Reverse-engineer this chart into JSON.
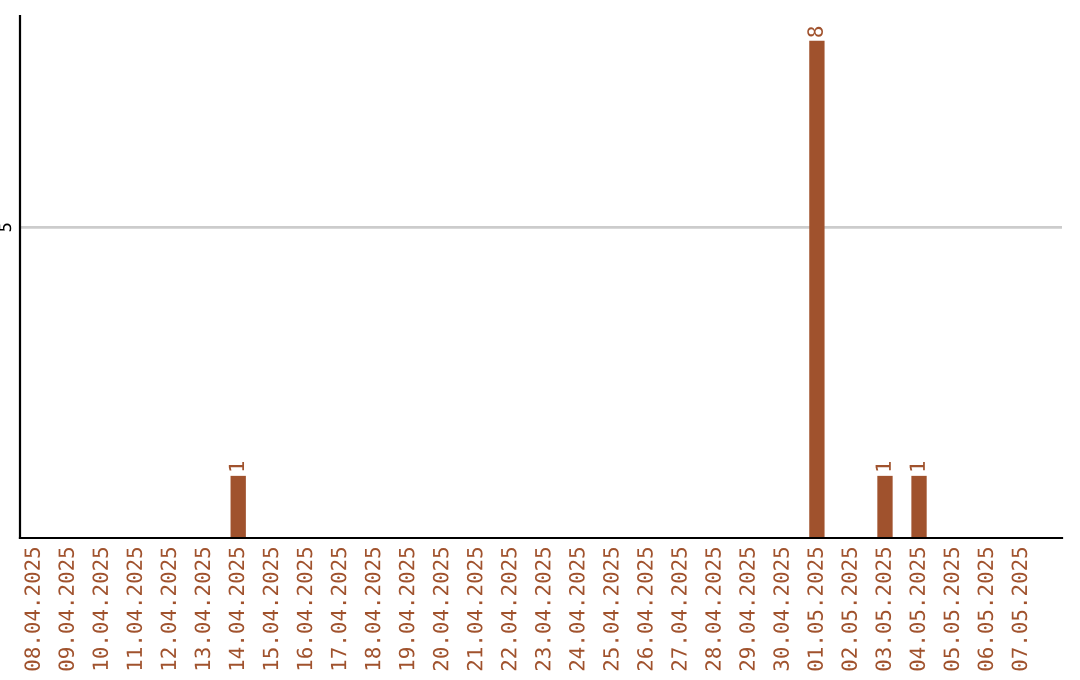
{
  "chart_data": {
    "type": "bar",
    "categories": [
      "08.04.2025",
      "09.04.2025",
      "10.04.2025",
      "11.04.2025",
      "12.04.2025",
      "13.04.2025",
      "14.04.2025",
      "15.04.2025",
      "16.04.2025",
      "17.04.2025",
      "18.04.2025",
      "19.04.2025",
      "20.04.2025",
      "21.04.2025",
      "22.04.2025",
      "23.04.2025",
      "24.04.2025",
      "25.04.2025",
      "26.04.2025",
      "27.04.2025",
      "28.04.2025",
      "29.04.2025",
      "30.04.2025",
      "01.05.2025",
      "02.05.2025",
      "03.05.2025",
      "04.05.2025",
      "05.05.2025",
      "06.05.2025",
      "07.05.2025"
    ],
    "values": [
      0,
      0,
      0,
      0,
      0,
      0,
      1,
      0,
      0,
      0,
      0,
      0,
      0,
      0,
      0,
      0,
      0,
      0,
      0,
      0,
      0,
      0,
      0,
      8,
      0,
      1,
      1,
      0,
      0,
      0
    ],
    "value_labels": [
      null,
      null,
      null,
      null,
      null,
      null,
      "1",
      null,
      null,
      null,
      null,
      null,
      null,
      null,
      null,
      null,
      null,
      null,
      null,
      null,
      null,
      null,
      null,
      "8",
      null,
      "1",
      "1",
      null,
      null,
      null
    ],
    "color": "#a0522d",
    "ylim": [
      0,
      8.4
    ],
    "yticks": [
      5
    ],
    "grid": "y"
  }
}
